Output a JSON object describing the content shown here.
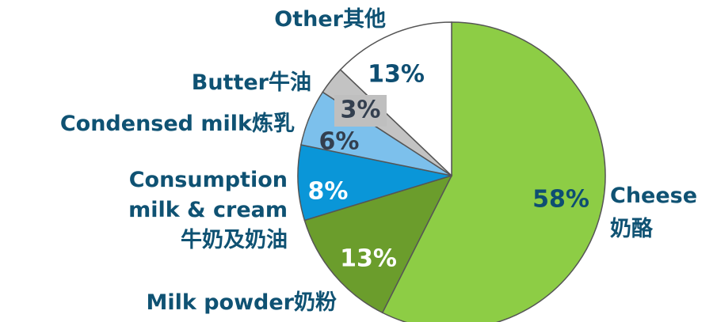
{
  "chart_data": {
    "type": "pie",
    "categories": [
      "Cheese\n奶酪",
      "Milk powder奶粉",
      "Consumption\nmilk & cream\n牛奶及奶油",
      "Condensed milk炼乳",
      "Butter牛油",
      "Other其他"
    ],
    "values": [
      58,
      13,
      8,
      6,
      3,
      13
    ],
    "value_labels": [
      "58%",
      "13%",
      "8%",
      "6%",
      "3%",
      "13%"
    ],
    "colors": [
      "#8dcd45",
      "#6b9d2c",
      "#0a96d8",
      "#7cc0ec",
      "#c3c3c3",
      "#ffffff"
    ]
  }
}
